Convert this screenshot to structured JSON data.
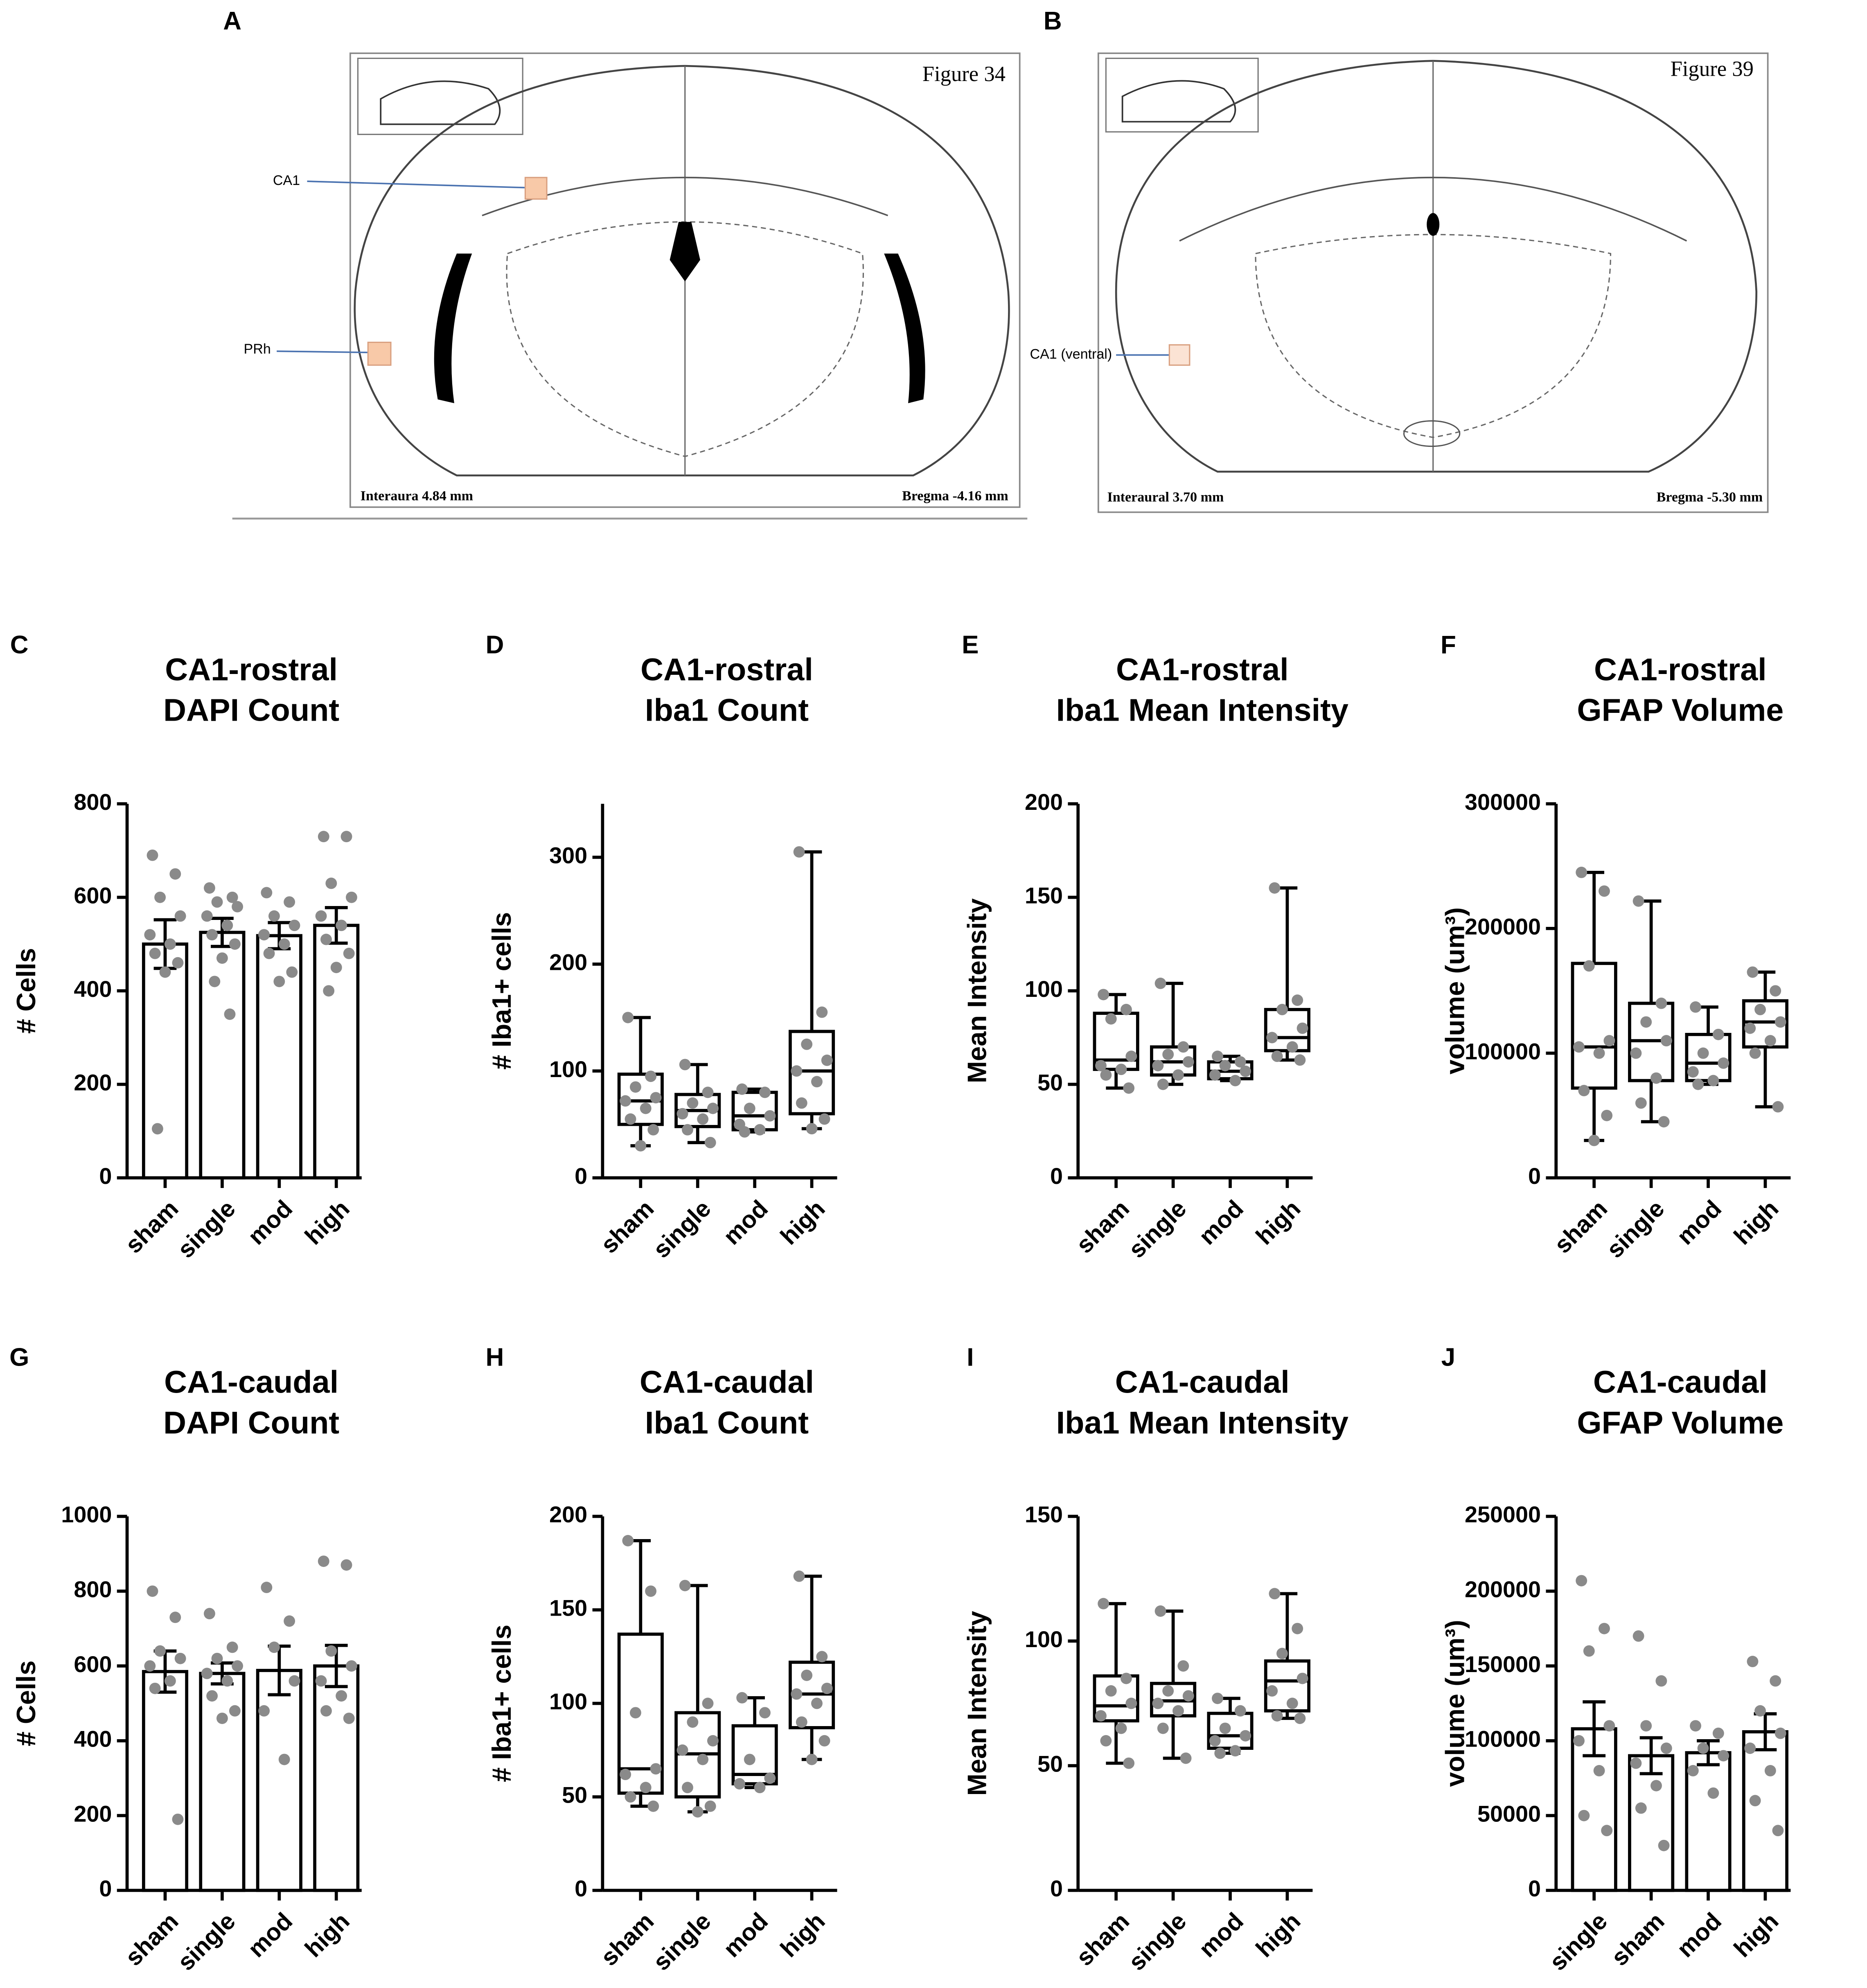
{
  "atlas_panels": [
    {
      "panel": "A",
      "figure_label": "Figure 34",
      "labels": [
        "CA1",
        "PRh"
      ],
      "left_note": "Interaura 4.84 mm",
      "right_note": "Bregma -4.16 mm"
    },
    {
      "panel": "B",
      "figure_label": "Figure 39",
      "labels": [
        "CA1 (ventral)"
      ],
      "left_note": "Interaural 3.70 mm",
      "right_note": "Bregma -5.30 mm"
    }
  ],
  "chart_data": [
    {
      "type": "bar",
      "panel": "C",
      "title": [
        "CA1-rostral",
        "DAPI Count"
      ],
      "ylabel": "# Cells",
      "categories": [
        "sham",
        "single",
        "mod",
        "high"
      ],
      "values": [
        500,
        525,
        518,
        540
      ],
      "errors": [
        52,
        30,
        28,
        38
      ],
      "points": [
        [
          690,
          650,
          600,
          560,
          520,
          500,
          480,
          460,
          440,
          105
        ],
        [
          620,
          600,
          590,
          580,
          560,
          540,
          520,
          500,
          470,
          420,
          350
        ],
        [
          610,
          590,
          560,
          540,
          520,
          500,
          480,
          440,
          420
        ],
        [
          730,
          730,
          630,
          600,
          560,
          540,
          510,
          480,
          450,
          400
        ]
      ],
      "ylim": [
        0,
        800
      ],
      "yticks": [
        0,
        200,
        400,
        600,
        800
      ],
      "color": "#ffffff",
      "point_color": "#8a8a8a"
    },
    {
      "type": "box",
      "panel": "D",
      "title": [
        "CA1-rostral",
        "Iba1 Count"
      ],
      "ylabel": "# Iba1+ cells",
      "categories": [
        "sham",
        "single",
        "mod",
        "high"
      ],
      "boxes": [
        {
          "min": 30,
          "q1": 50,
          "median": 72,
          "q3": 97,
          "max": 150,
          "points": [
            150,
            95,
            85,
            75,
            72,
            65,
            55,
            45,
            30
          ]
        },
        {
          "min": 33,
          "q1": 48,
          "median": 63,
          "q3": 78,
          "max": 106,
          "points": [
            106,
            80,
            70,
            65,
            60,
            55,
            45,
            33
          ]
        },
        {
          "min": 43,
          "q1": 45,
          "median": 58,
          "q3": 80,
          "max": 83,
          "points": [
            83,
            80,
            65,
            58,
            50,
            45,
            43
          ]
        },
        {
          "min": 46,
          "q1": 60,
          "median": 100,
          "q3": 137,
          "max": 305,
          "points": [
            305,
            155,
            125,
            110,
            100,
            90,
            70,
            55,
            46
          ]
        }
      ],
      "ylim": [
        0,
        350
      ],
      "yticks": [
        0,
        100,
        200,
        300
      ],
      "color": "#ffffff",
      "point_color": "#8a8a8a"
    },
    {
      "type": "box",
      "panel": "E",
      "title": [
        "CA1-rostral",
        "Iba1 Mean Intensity"
      ],
      "ylabel": "Mean Intensity",
      "categories": [
        "sham",
        "single",
        "mod",
        "high"
      ],
      "boxes": [
        {
          "min": 48,
          "q1": 58,
          "median": 63,
          "q3": 88,
          "max": 98,
          "points": [
            98,
            90,
            85,
            65,
            60,
            58,
            55,
            48
          ]
        },
        {
          "min": 50,
          "q1": 55,
          "median": 62,
          "q3": 70,
          "max": 104,
          "points": [
            104,
            70,
            66,
            62,
            60,
            55,
            50
          ]
        },
        {
          "min": 52,
          "q1": 53,
          "median": 57,
          "q3": 62,
          "max": 65,
          "points": [
            65,
            62,
            60,
            57,
            55,
            52
          ]
        },
        {
          "min": 63,
          "q1": 68,
          "median": 75,
          "q3": 90,
          "max": 155,
          "points": [
            155,
            95,
            90,
            80,
            75,
            70,
            65,
            63
          ]
        }
      ],
      "ylim": [
        0,
        200
      ],
      "yticks": [
        0,
        50,
        100,
        150,
        200
      ],
      "color": "#ffffff",
      "point_color": "#8a8a8a"
    },
    {
      "type": "box",
      "panel": "F",
      "title": [
        "CA1-rostral",
        "GFAP Volume"
      ],
      "ylabel": "volume (um³)",
      "categories": [
        "sham",
        "single",
        "mod",
        "high"
      ],
      "boxes": [
        {
          "min": 30000,
          "q1": 72000,
          "median": 105000,
          "q3": 172000,
          "max": 245000,
          "points": [
            245000,
            230000,
            170000,
            110000,
            105000,
            100000,
            70000,
            50000,
            30000
          ]
        },
        {
          "min": 45000,
          "q1": 78000,
          "median": 110000,
          "q3": 140000,
          "max": 222000,
          "points": [
            222000,
            140000,
            125000,
            110000,
            100000,
            80000,
            60000,
            45000
          ]
        },
        {
          "min": 75000,
          "q1": 78000,
          "median": 92000,
          "q3": 115000,
          "max": 137000,
          "points": [
            137000,
            115000,
            100000,
            92000,
            85000,
            78000,
            75000
          ]
        },
        {
          "min": 57000,
          "q1": 105000,
          "median": 125000,
          "q3": 142000,
          "max": 165000,
          "points": [
            165000,
            150000,
            135000,
            125000,
            120000,
            110000,
            100000,
            57000
          ]
        }
      ],
      "ylim": [
        0,
        300000
      ],
      "yticks": [
        0,
        100000,
        200000,
        300000
      ],
      "color": "#ffffff",
      "point_color": "#8a8a8a"
    },
    {
      "type": "bar",
      "panel": "G",
      "title": [
        "CA1-caudal",
        "DAPI Count"
      ],
      "ylabel": "# Cells",
      "categories": [
        "sham",
        "single",
        "mod",
        "high"
      ],
      "values": [
        585,
        580,
        588,
        600
      ],
      "errors": [
        55,
        28,
        65,
        55
      ],
      "points": [
        [
          800,
          730,
          640,
          620,
          600,
          560,
          540,
          190
        ],
        [
          740,
          650,
          620,
          600,
          580,
          560,
          520,
          480,
          460
        ],
        [
          810,
          720,
          650,
          560,
          480,
          350
        ],
        [
          880,
          870,
          640,
          600,
          560,
          520,
          480,
          460
        ]
      ],
      "ylim": [
        0,
        1000
      ],
      "yticks": [
        0,
        200,
        400,
        600,
        800,
        1000
      ],
      "color": "#ffffff",
      "point_color": "#8a8a8a"
    },
    {
      "type": "box",
      "panel": "H",
      "title": [
        "CA1-caudal",
        "Iba1 Count"
      ],
      "ylabel": "# Iba1+ cells",
      "categories": [
        "sham",
        "single",
        "mod",
        "high"
      ],
      "boxes": [
        {
          "min": 45,
          "q1": 52,
          "median": 65,
          "q3": 137,
          "max": 187,
          "points": [
            187,
            160,
            95,
            65,
            62,
            55,
            50,
            45
          ]
        },
        {
          "min": 42,
          "q1": 50,
          "median": 73,
          "q3": 95,
          "max": 163,
          "points": [
            163,
            100,
            90,
            80,
            75,
            70,
            55,
            45,
            42
          ]
        },
        {
          "min": 55,
          "q1": 57,
          "median": 62,
          "q3": 88,
          "max": 103,
          "points": [
            103,
            95,
            70,
            60,
            57,
            55
          ]
        },
        {
          "min": 70,
          "q1": 87,
          "median": 105,
          "q3": 122,
          "max": 168,
          "points": [
            168,
            125,
            115,
            108,
            105,
            100,
            90,
            80,
            70
          ]
        }
      ],
      "ylim": [
        0,
        200
      ],
      "yticks": [
        0,
        50,
        100,
        150,
        200
      ],
      "color": "#ffffff",
      "point_color": "#8a8a8a"
    },
    {
      "type": "box",
      "panel": "I",
      "title": [
        "CA1-caudal",
        "Iba1 Mean Intensity"
      ],
      "ylabel": "Mean Intensity",
      "categories": [
        "sham",
        "single",
        "mod",
        "high"
      ],
      "boxes": [
        {
          "min": 51,
          "q1": 68,
          "median": 74,
          "q3": 86,
          "max": 115,
          "points": [
            115,
            85,
            80,
            75,
            70,
            65,
            60,
            51
          ]
        },
        {
          "min": 53,
          "q1": 70,
          "median": 76,
          "q3": 83,
          "max": 112,
          "points": [
            112,
            90,
            80,
            78,
            75,
            72,
            65,
            53
          ]
        },
        {
          "min": 55,
          "q1": 57,
          "median": 62,
          "q3": 71,
          "max": 77,
          "points": [
            77,
            72,
            65,
            62,
            60,
            56,
            55
          ]
        },
        {
          "min": 69,
          "q1": 72,
          "median": 84,
          "q3": 92,
          "max": 119,
          "points": [
            119,
            105,
            95,
            85,
            80,
            75,
            70,
            69
          ]
        }
      ],
      "ylim": [
        0,
        150
      ],
      "yticks": [
        0,
        50,
        100,
        150
      ],
      "color": "#ffffff",
      "point_color": "#8a8a8a"
    },
    {
      "type": "bar",
      "panel": "J",
      "title": [
        "CA1-caudal",
        "GFAP Volume"
      ],
      "ylabel": "volume (um³)",
      "categories": [
        "single",
        "sham",
        "mod",
        "high"
      ],
      "values": [
        108000,
        90000,
        92000,
        106000
      ],
      "errors": [
        18000,
        12000,
        8000,
        12000
      ],
      "points": [
        [
          207000,
          175000,
          160000,
          110000,
          100000,
          80000,
          50000,
          40000
        ],
        [
          170000,
          140000,
          110000,
          95000,
          85000,
          70000,
          55000,
          30000
        ],
        [
          110000,
          105000,
          95000,
          90000,
          80000,
          65000
        ],
        [
          153000,
          140000,
          120000,
          105000,
          95000,
          80000,
          60000,
          40000
        ]
      ],
      "ylim": [
        0,
        250000
      ],
      "yticks": [
        0,
        50000,
        100000,
        150000,
        200000,
        250000
      ],
      "color": "#ffffff",
      "point_color": "#8a8a8a"
    }
  ]
}
